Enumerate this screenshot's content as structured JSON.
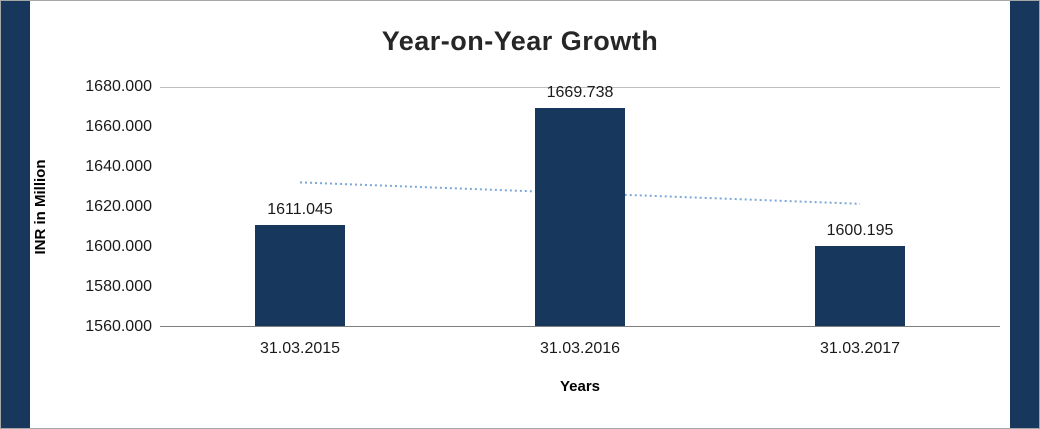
{
  "frame": {
    "bar_color": "#17375D",
    "trendline_color": "#7DA7D9",
    "background": "#FFFFFF",
    "border_color": "#A6A6A6"
  },
  "chart_data": {
    "type": "bar",
    "title": "Year-on-Year Growth",
    "categories": [
      "31.03.2015",
      "31.03.2016",
      "31.03.2017"
    ],
    "values": [
      1611.045,
      1669.738,
      1600.195
    ],
    "data_labels": [
      "1611.045",
      "1669.738",
      "1600.195"
    ],
    "xlabel": "Years",
    "ylabel": "INR in Million",
    "ylim": [
      1560,
      1680
    ],
    "ytick_step": 20,
    "ytick_labels": [
      "1560.000",
      "1580.000",
      "1600.000",
      "1620.000",
      "1640.000",
      "1660.000",
      "1680.000"
    ],
    "trendline": {
      "style": "dotted",
      "start_value": 1632.4,
      "end_value": 1621.6
    },
    "legend": "none",
    "grid": "top-gridline-only"
  }
}
